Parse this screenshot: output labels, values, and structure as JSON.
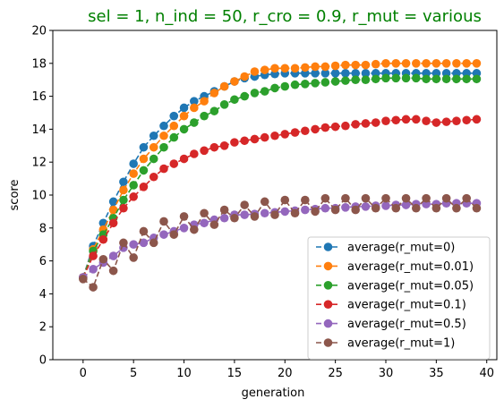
{
  "chart_data": {
    "type": "line",
    "title": "sel = 1, n_ind = 50, r_cro = 0.9, r_mut = various",
    "title_color": "#008000",
    "xlabel": "generation",
    "ylabel": "score",
    "xlim": [
      -3,
      41
    ],
    "ylim": [
      0,
      20
    ],
    "xticks": [
      0,
      5,
      10,
      15,
      20,
      25,
      30,
      35,
      40
    ],
    "yticks": [
      0,
      2,
      4,
      6,
      8,
      10,
      12,
      14,
      16,
      18,
      20
    ],
    "grid": false,
    "legend_position": "lower-right",
    "x": [
      0,
      1,
      2,
      3,
      4,
      5,
      6,
      7,
      8,
      9,
      10,
      11,
      12,
      13,
      14,
      15,
      16,
      17,
      18,
      19,
      20,
      21,
      22,
      23,
      24,
      25,
      26,
      27,
      28,
      29,
      30,
      31,
      32,
      33,
      34,
      35,
      36,
      37,
      38,
      39
    ],
    "series": [
      {
        "name": "average(r_mut=0)",
        "color": "#1f77b4",
        "values": [
          5.0,
          6.9,
          8.3,
          9.6,
          10.8,
          11.9,
          12.9,
          13.6,
          14.2,
          14.8,
          15.3,
          15.7,
          16.0,
          16.3,
          16.6,
          16.9,
          17.1,
          17.2,
          17.3,
          17.35,
          17.4,
          17.4,
          17.4,
          17.4,
          17.4,
          17.4,
          17.4,
          17.4,
          17.4,
          17.4,
          17.4,
          17.4,
          17.4,
          17.4,
          17.4,
          17.4,
          17.4,
          17.4,
          17.4,
          17.4
        ]
      },
      {
        "name": "average(r_mut=0.01)",
        "color": "#ff7f0e",
        "values": [
          5.0,
          6.7,
          7.9,
          9.1,
          10.3,
          11.3,
          12.2,
          12.9,
          13.6,
          14.2,
          14.8,
          15.3,
          15.7,
          16.2,
          16.6,
          16.9,
          17.2,
          17.5,
          17.6,
          17.7,
          17.7,
          17.7,
          17.75,
          17.8,
          17.8,
          17.85,
          17.9,
          17.9,
          17.9,
          17.95,
          18.0,
          18.0,
          18.0,
          18.0,
          18.0,
          18.0,
          18.0,
          18.0,
          18.0,
          18.0
        ]
      },
      {
        "name": "average(r_mut=0.05)",
        "color": "#2ca02c",
        "values": [
          5.0,
          6.6,
          7.6,
          8.6,
          9.7,
          10.6,
          11.5,
          12.2,
          12.9,
          13.5,
          14.0,
          14.4,
          14.8,
          15.1,
          15.5,
          15.8,
          16.0,
          16.2,
          16.3,
          16.5,
          16.6,
          16.7,
          16.75,
          16.8,
          16.85,
          16.9,
          16.95,
          17.0,
          17.0,
          17.05,
          17.1,
          17.1,
          17.1,
          17.1,
          17.05,
          17.05,
          17.05,
          17.05,
          17.05,
          17.05
        ]
      },
      {
        "name": "average(r_mut=0.1)",
        "color": "#d62728",
        "values": [
          5.0,
          6.3,
          7.3,
          8.3,
          9.2,
          9.9,
          10.5,
          11.1,
          11.6,
          11.9,
          12.2,
          12.5,
          12.7,
          12.9,
          13.0,
          13.2,
          13.3,
          13.4,
          13.5,
          13.6,
          13.7,
          13.8,
          13.9,
          14.0,
          14.1,
          14.15,
          14.2,
          14.3,
          14.35,
          14.4,
          14.5,
          14.55,
          14.6,
          14.6,
          14.5,
          14.4,
          14.45,
          14.5,
          14.55,
          14.6
        ]
      },
      {
        "name": "average(r_mut=0.5)",
        "color": "#9467bd",
        "values": [
          5.0,
          5.5,
          5.9,
          6.3,
          6.8,
          7.0,
          7.1,
          7.4,
          7.6,
          7.8,
          8.0,
          8.2,
          8.3,
          8.5,
          8.6,
          8.8,
          8.8,
          8.85,
          8.9,
          8.95,
          9.0,
          9.05,
          9.1,
          9.15,
          9.2,
          9.2,
          9.25,
          9.3,
          9.3,
          9.35,
          9.35,
          9.4,
          9.4,
          9.45,
          9.45,
          9.45,
          9.5,
          9.5,
          9.5,
          9.5
        ]
      },
      {
        "name": "average(r_mut=1)",
        "color": "#8c564b",
        "values": [
          4.9,
          4.4,
          6.1,
          5.4,
          7.1,
          6.2,
          7.8,
          7.1,
          8.4,
          7.6,
          8.7,
          7.9,
          8.9,
          8.2,
          9.1,
          8.6,
          9.4,
          8.7,
          9.6,
          8.8,
          9.7,
          8.9,
          9.7,
          9.0,
          9.8,
          9.1,
          9.8,
          9.1,
          9.8,
          9.2,
          9.8,
          9.2,
          9.8,
          9.2,
          9.8,
          9.2,
          9.8,
          9.2,
          9.8,
          9.2
        ]
      }
    ]
  }
}
